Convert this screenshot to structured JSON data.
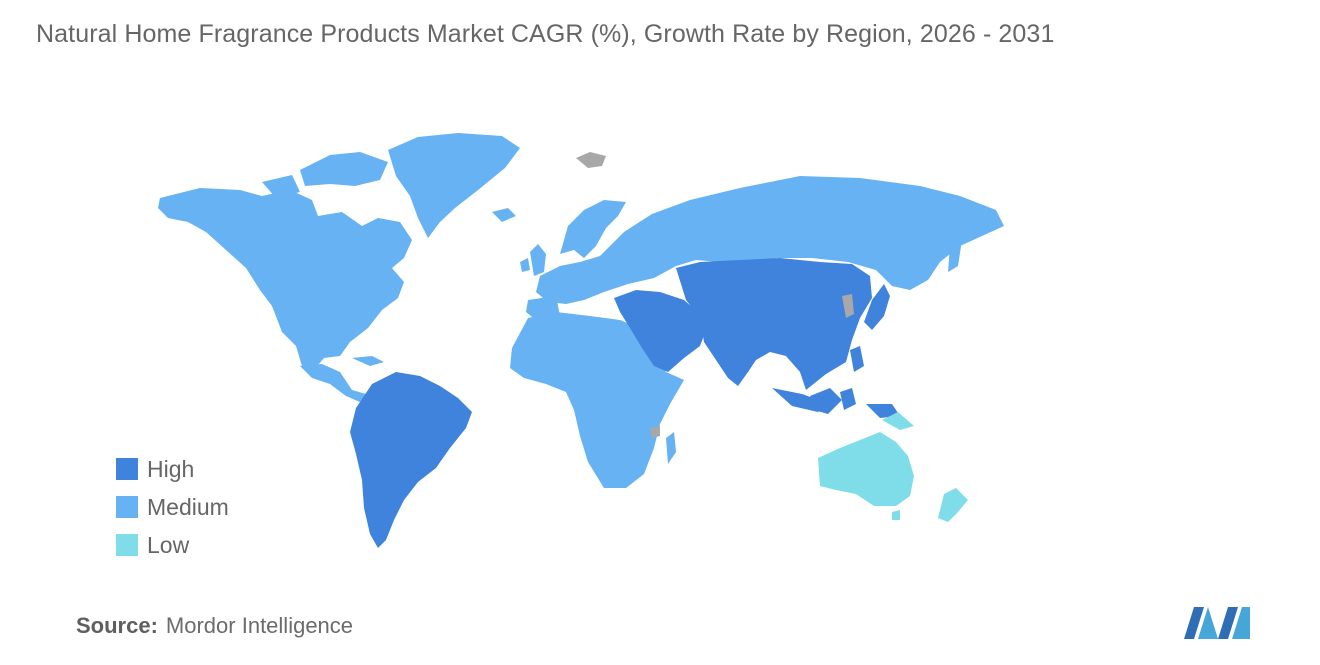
{
  "title": "Natural Home Fragrance Products Market CAGR (%), Growth Rate by Region, 2026 - 2031",
  "colors": {
    "high": "#3f83dc",
    "medium": "#66b2f2",
    "low": "#7fdde9",
    "no_data": "#a8a8a8",
    "text": "#666666"
  },
  "legend": [
    {
      "label": "High",
      "color": "#3f83dc"
    },
    {
      "label": "Medium",
      "color": "#66b2f2"
    },
    {
      "label": "Low",
      "color": "#7fdde9"
    }
  ],
  "regions": [
    {
      "name": "North America",
      "level": "Medium"
    },
    {
      "name": "Europe",
      "level": "Medium"
    },
    {
      "name": "Africa",
      "level": "Medium"
    },
    {
      "name": "South America",
      "level": "High"
    },
    {
      "name": "Middle East",
      "level": "High"
    },
    {
      "name": "Asia-Pacific",
      "level": "High"
    },
    {
      "name": "Australia and New Zealand",
      "level": "Low"
    }
  ],
  "source": {
    "key": "Source:",
    "value": "Mordor Intelligence"
  },
  "logo_icon": "mordor-intelligence-logo"
}
